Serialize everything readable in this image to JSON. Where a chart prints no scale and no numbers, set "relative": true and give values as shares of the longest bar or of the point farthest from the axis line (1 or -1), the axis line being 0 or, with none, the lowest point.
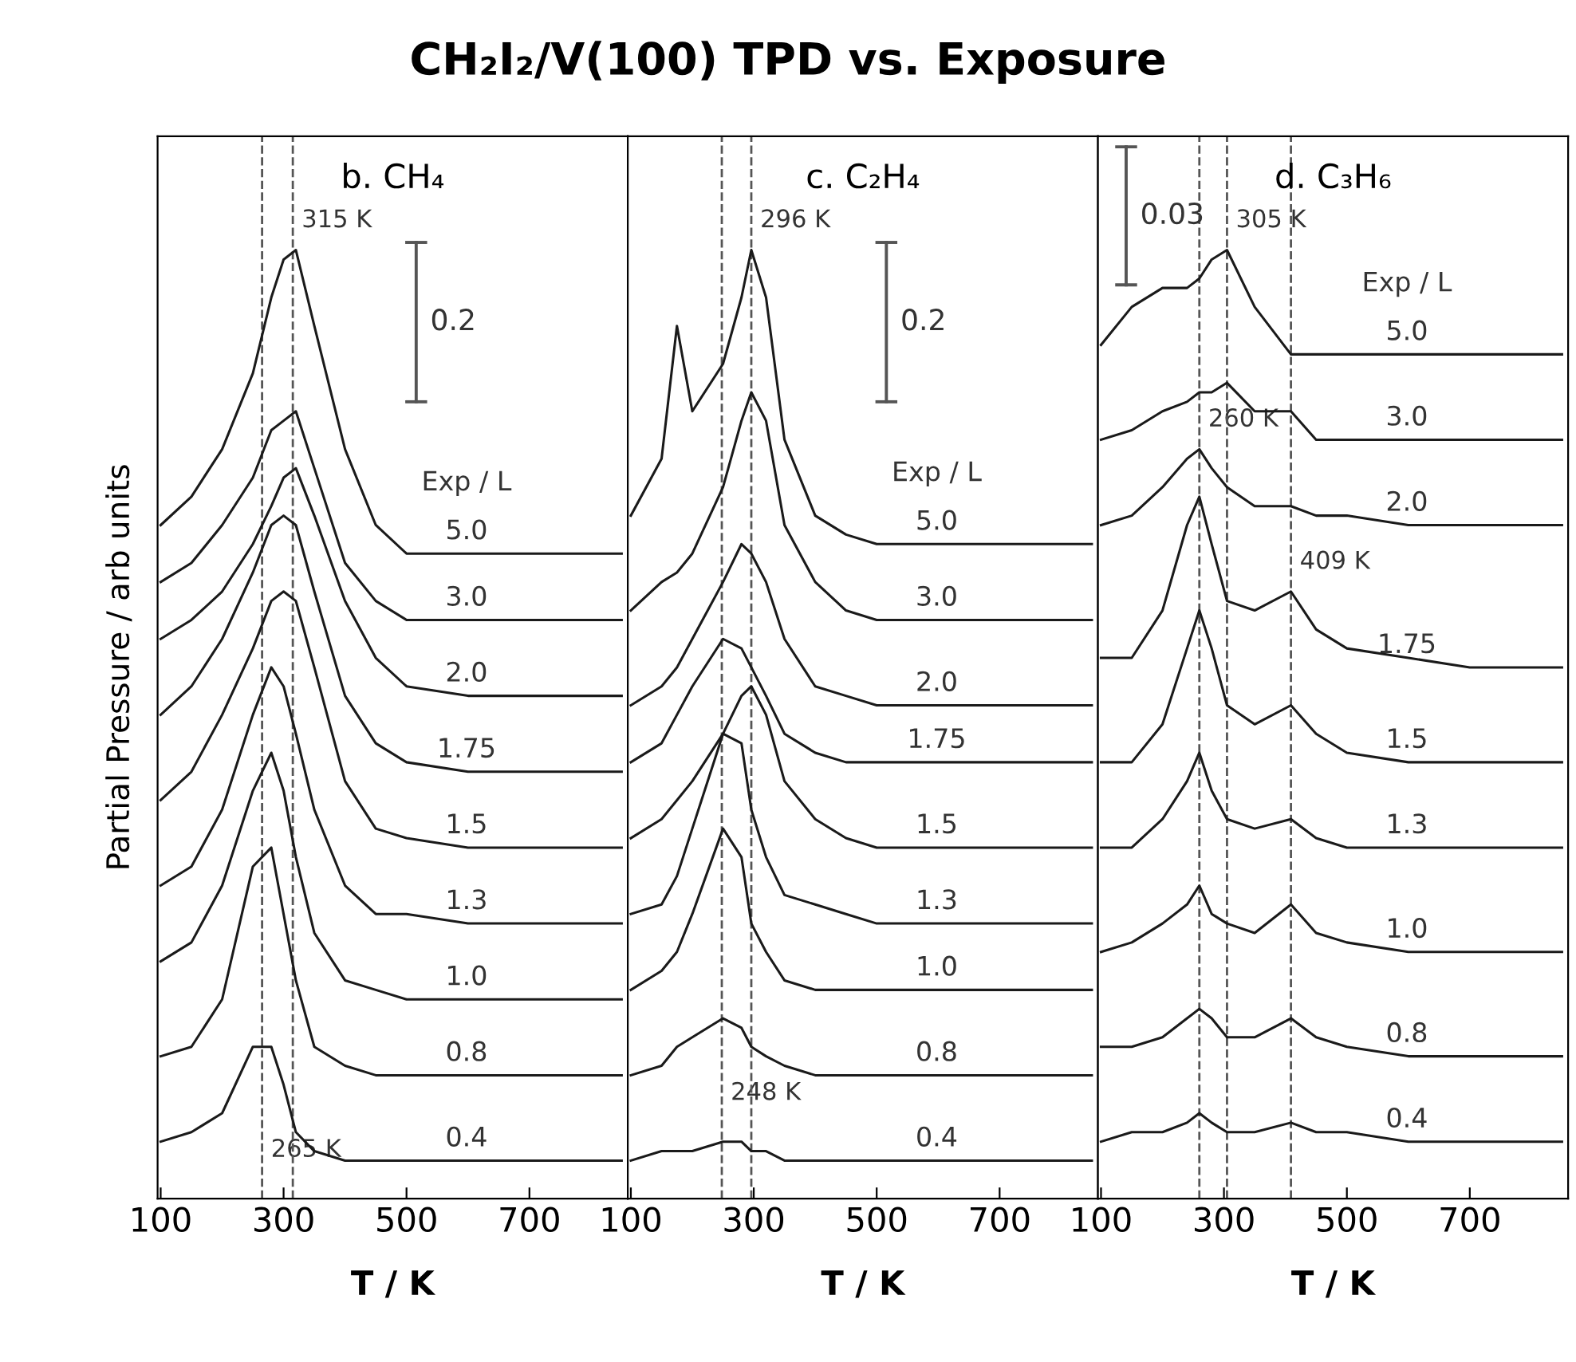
{
  "chart_data": [
    {
      "type": "line",
      "title": "CH₂I₂/V(100) TPD vs. Exposure",
      "subtitle": "b. CH₄",
      "xlabel": "T / K",
      "ylabel": "Partial Pressure / arb units",
      "legend_title": "Exp / L",
      "relative": true,
      "tick_labels": "x",
      "xlim": [
        95,
        860
      ],
      "xticks": [
        100,
        300,
        500,
        700
      ],
      "grid": false,
      "x": [
        100,
        150,
        200,
        250,
        280,
        300,
        320,
        350,
        400,
        450,
        500,
        600,
        700,
        850
      ],
      "series": [
        {
          "name": "5.0",
          "color": "#1a1a1a",
          "values": [
            0.71,
            0.74,
            0.79,
            0.87,
            0.95,
            0.99,
            1.0,
            0.92,
            0.79,
            0.71,
            0.68,
            0.68,
            0.68,
            0.68
          ]
        },
        {
          "name": "3.0",
          "color": "#1a1a1a",
          "values": [
            0.65,
            0.67,
            0.71,
            0.76,
            0.81,
            0.82,
            0.83,
            0.77,
            0.67,
            0.63,
            0.61,
            0.61,
            0.61,
            0.61
          ]
        },
        {
          "name": "2.0",
          "color": "#1a1a1a",
          "values": [
            0.59,
            0.61,
            0.64,
            0.69,
            0.73,
            0.76,
            0.77,
            0.72,
            0.63,
            0.57,
            0.54,
            0.53,
            0.53,
            0.53
          ]
        },
        {
          "name": "1.75",
          "color": "#1a1a1a",
          "values": [
            0.51,
            0.54,
            0.59,
            0.66,
            0.71,
            0.72,
            0.71,
            0.64,
            0.53,
            0.48,
            0.46,
            0.45,
            0.45,
            0.45
          ]
        },
        {
          "name": "1.5",
          "color": "#1a1a1a",
          "values": [
            0.42,
            0.45,
            0.51,
            0.58,
            0.63,
            0.64,
            0.63,
            0.56,
            0.44,
            0.39,
            0.38,
            0.37,
            0.37,
            0.37
          ]
        },
        {
          "name": "1.3",
          "color": "#1a1a1a",
          "values": [
            0.33,
            0.35,
            0.41,
            0.51,
            0.56,
            0.54,
            0.49,
            0.41,
            0.33,
            0.3,
            0.3,
            0.29,
            0.29,
            0.29
          ]
        },
        {
          "name": "1.0",
          "color": "#1a1a1a",
          "values": [
            0.25,
            0.27,
            0.33,
            0.43,
            0.47,
            0.43,
            0.36,
            0.28,
            0.23,
            0.22,
            0.21,
            0.21,
            0.21,
            0.21
          ]
        },
        {
          "name": "0.8",
          "color": "#1a1a1a",
          "values": [
            0.15,
            0.16,
            0.21,
            0.35,
            0.37,
            0.3,
            0.23,
            0.16,
            0.14,
            0.13,
            0.13,
            0.13,
            0.13,
            0.13
          ]
        },
        {
          "name": "0.4",
          "color": "#1a1a1a",
          "values": [
            0.06,
            0.07,
            0.09,
            0.16,
            0.16,
            0.12,
            0.07,
            0.05,
            0.04,
            0.04,
            0.04,
            0.04,
            0.04,
            0.04
          ]
        }
      ],
      "ref_lines": [
        {
          "axis": "x",
          "value": 315,
          "color": "#555555",
          "line_style": "dashed"
        },
        {
          "axis": "x",
          "value": 265,
          "color": "#555555",
          "line_style": "dashed"
        }
      ],
      "annotations": [
        "0.2",
        {
          "text": "315 K",
          "x": 315,
          "y": 1.0
        },
        {
          "text": "265 K",
          "x": 265,
          "y": 0.02
        }
      ]
    },
    {
      "type": "line",
      "subtitle": "c. C₂H₄",
      "xlabel": "T / K",
      "legend_title": "Exp / L",
      "relative": true,
      "tick_labels": "x",
      "xlim": [
        95,
        860
      ],
      "xticks": [
        100,
        300,
        500,
        700
      ],
      "grid": false,
      "x": [
        100,
        150,
        175,
        200,
        250,
        280,
        296,
        320,
        350,
        400,
        450,
        500,
        600,
        700,
        850
      ],
      "series": [
        {
          "name": "5.0",
          "color": "#1a1a1a",
          "values": [
            0.72,
            0.78,
            0.92,
            0.83,
            0.88,
            0.95,
            1.0,
            0.95,
            0.8,
            0.72,
            0.7,
            0.69,
            0.69,
            0.69,
            0.69
          ]
        },
        {
          "name": "3.0",
          "color": "#1a1a1a",
          "values": [
            0.62,
            0.65,
            0.66,
            0.68,
            0.75,
            0.82,
            0.85,
            0.82,
            0.71,
            0.65,
            0.62,
            0.61,
            0.61,
            0.61,
            0.61
          ]
        },
        {
          "name": "2.0",
          "color": "#1a1a1a",
          "values": [
            0.52,
            0.54,
            0.56,
            0.59,
            0.65,
            0.69,
            0.68,
            0.65,
            0.59,
            0.54,
            0.53,
            0.52,
            0.52,
            0.52,
            0.52
          ]
        },
        {
          "name": "1.75",
          "color": "#1a1a1a",
          "values": [
            0.46,
            0.48,
            0.51,
            0.54,
            0.59,
            0.58,
            0.56,
            0.53,
            0.49,
            0.47,
            0.46,
            0.46,
            0.46,
            0.46,
            0.46
          ]
        },
        {
          "name": "1.5",
          "color": "#1a1a1a",
          "values": [
            0.38,
            0.4,
            0.42,
            0.44,
            0.49,
            0.53,
            0.54,
            0.51,
            0.44,
            0.4,
            0.38,
            0.37,
            0.37,
            0.37,
            0.37
          ]
        },
        {
          "name": "1.3",
          "color": "#1a1a1a",
          "values": [
            0.3,
            0.31,
            0.34,
            0.39,
            0.49,
            0.48,
            0.41,
            0.36,
            0.32,
            0.31,
            0.3,
            0.29,
            0.29,
            0.29,
            0.29
          ]
        },
        {
          "name": "1.0",
          "color": "#1a1a1a",
          "values": [
            0.22,
            0.24,
            0.26,
            0.3,
            0.39,
            0.36,
            0.29,
            0.26,
            0.23,
            0.22,
            0.22,
            0.22,
            0.22,
            0.22,
            0.22
          ]
        },
        {
          "name": "0.8",
          "color": "#1a1a1a",
          "values": [
            0.13,
            0.14,
            0.16,
            0.17,
            0.19,
            0.18,
            0.16,
            0.15,
            0.14,
            0.13,
            0.13,
            0.13,
            0.13,
            0.13,
            0.13
          ]
        },
        {
          "name": "0.4",
          "color": "#1a1a1a",
          "values": [
            0.04,
            0.05,
            0.05,
            0.05,
            0.06,
            0.06,
            0.05,
            0.05,
            0.04,
            0.04,
            0.04,
            0.04,
            0.04,
            0.04,
            0.04
          ]
        }
      ],
      "ref_lines": [
        {
          "axis": "x",
          "value": 296,
          "color": "#555555",
          "line_style": "dashed"
        },
        {
          "axis": "x",
          "value": 248,
          "color": "#555555",
          "line_style": "dashed"
        }
      ],
      "annotations": [
        "0.2",
        {
          "text": "296 K",
          "x": 296,
          "y": 1.0
        },
        {
          "text": "248 K",
          "x": 248,
          "y": 0.08
        }
      ]
    },
    {
      "type": "line",
      "subtitle": "d. C₃H₆",
      "xlabel": "T / K",
      "legend_title": "Exp / L",
      "relative": true,
      "tick_labels": "x",
      "xlim": [
        95,
        860
      ],
      "xticks": [
        100,
        300,
        500,
        700
      ],
      "grid": false,
      "x": [
        100,
        150,
        200,
        240,
        260,
        280,
        305,
        350,
        409,
        450,
        500,
        600,
        700,
        850
      ],
      "series": [
        {
          "name": "5.0",
          "color": "#1a1a1a",
          "values": [
            0.9,
            0.94,
            0.96,
            0.96,
            0.97,
            0.99,
            1.0,
            0.94,
            0.89,
            0.89,
            0.89,
            0.89,
            0.89,
            0.89
          ]
        },
        {
          "name": "3.0",
          "color": "#1a1a1a",
          "values": [
            0.8,
            0.81,
            0.83,
            0.84,
            0.85,
            0.85,
            0.86,
            0.83,
            0.83,
            0.8,
            0.8,
            0.8,
            0.8,
            0.8
          ]
        },
        {
          "name": "2.0",
          "color": "#1a1a1a",
          "values": [
            0.71,
            0.72,
            0.75,
            0.78,
            0.79,
            0.77,
            0.75,
            0.73,
            0.73,
            0.72,
            0.72,
            0.71,
            0.71,
            0.71
          ]
        },
        {
          "name": "1.75",
          "color": "#1a1a1a",
          "values": [
            0.57,
            0.57,
            0.62,
            0.71,
            0.74,
            0.69,
            0.63,
            0.62,
            0.64,
            0.6,
            0.58,
            0.57,
            0.56,
            0.56
          ]
        },
        {
          "name": "1.5",
          "color": "#1a1a1a",
          "values": [
            0.46,
            0.46,
            0.5,
            0.58,
            0.62,
            0.58,
            0.52,
            0.5,
            0.52,
            0.49,
            0.47,
            0.46,
            0.46,
            0.46
          ]
        },
        {
          "name": "1.3",
          "color": "#1a1a1a",
          "values": [
            0.37,
            0.37,
            0.4,
            0.44,
            0.47,
            0.43,
            0.4,
            0.39,
            0.4,
            0.38,
            0.37,
            0.37,
            0.37,
            0.37
          ]
        },
        {
          "name": "1.0",
          "color": "#1a1a1a",
          "values": [
            0.26,
            0.27,
            0.29,
            0.31,
            0.33,
            0.3,
            0.29,
            0.28,
            0.31,
            0.28,
            0.27,
            0.26,
            0.26,
            0.26
          ]
        },
        {
          "name": "0.8",
          "color": "#1a1a1a",
          "values": [
            0.16,
            0.16,
            0.17,
            0.19,
            0.2,
            0.19,
            0.17,
            0.17,
            0.19,
            0.17,
            0.16,
            0.15,
            0.15,
            0.15
          ]
        },
        {
          "name": "0.4",
          "color": "#1a1a1a",
          "values": [
            0.06,
            0.07,
            0.07,
            0.08,
            0.09,
            0.08,
            0.07,
            0.07,
            0.08,
            0.07,
            0.07,
            0.06,
            0.06,
            0.06
          ]
        }
      ],
      "ref_lines": [
        {
          "axis": "x",
          "value": 305,
          "color": "#555555",
          "line_style": "dashed"
        },
        {
          "axis": "x",
          "value": 260,
          "color": "#555555",
          "line_style": "dashed"
        },
        {
          "axis": "x",
          "value": 409,
          "color": "#555555",
          "line_style": "dashed"
        }
      ],
      "annotations": [
        "0.03",
        {
          "text": "305 K",
          "x": 305,
          "y": 1.0
        },
        {
          "text": "260 K",
          "x": 260,
          "y": 0.79
        },
        {
          "text": "409 K",
          "x": 409,
          "y": 0.64
        }
      ]
    }
  ]
}
